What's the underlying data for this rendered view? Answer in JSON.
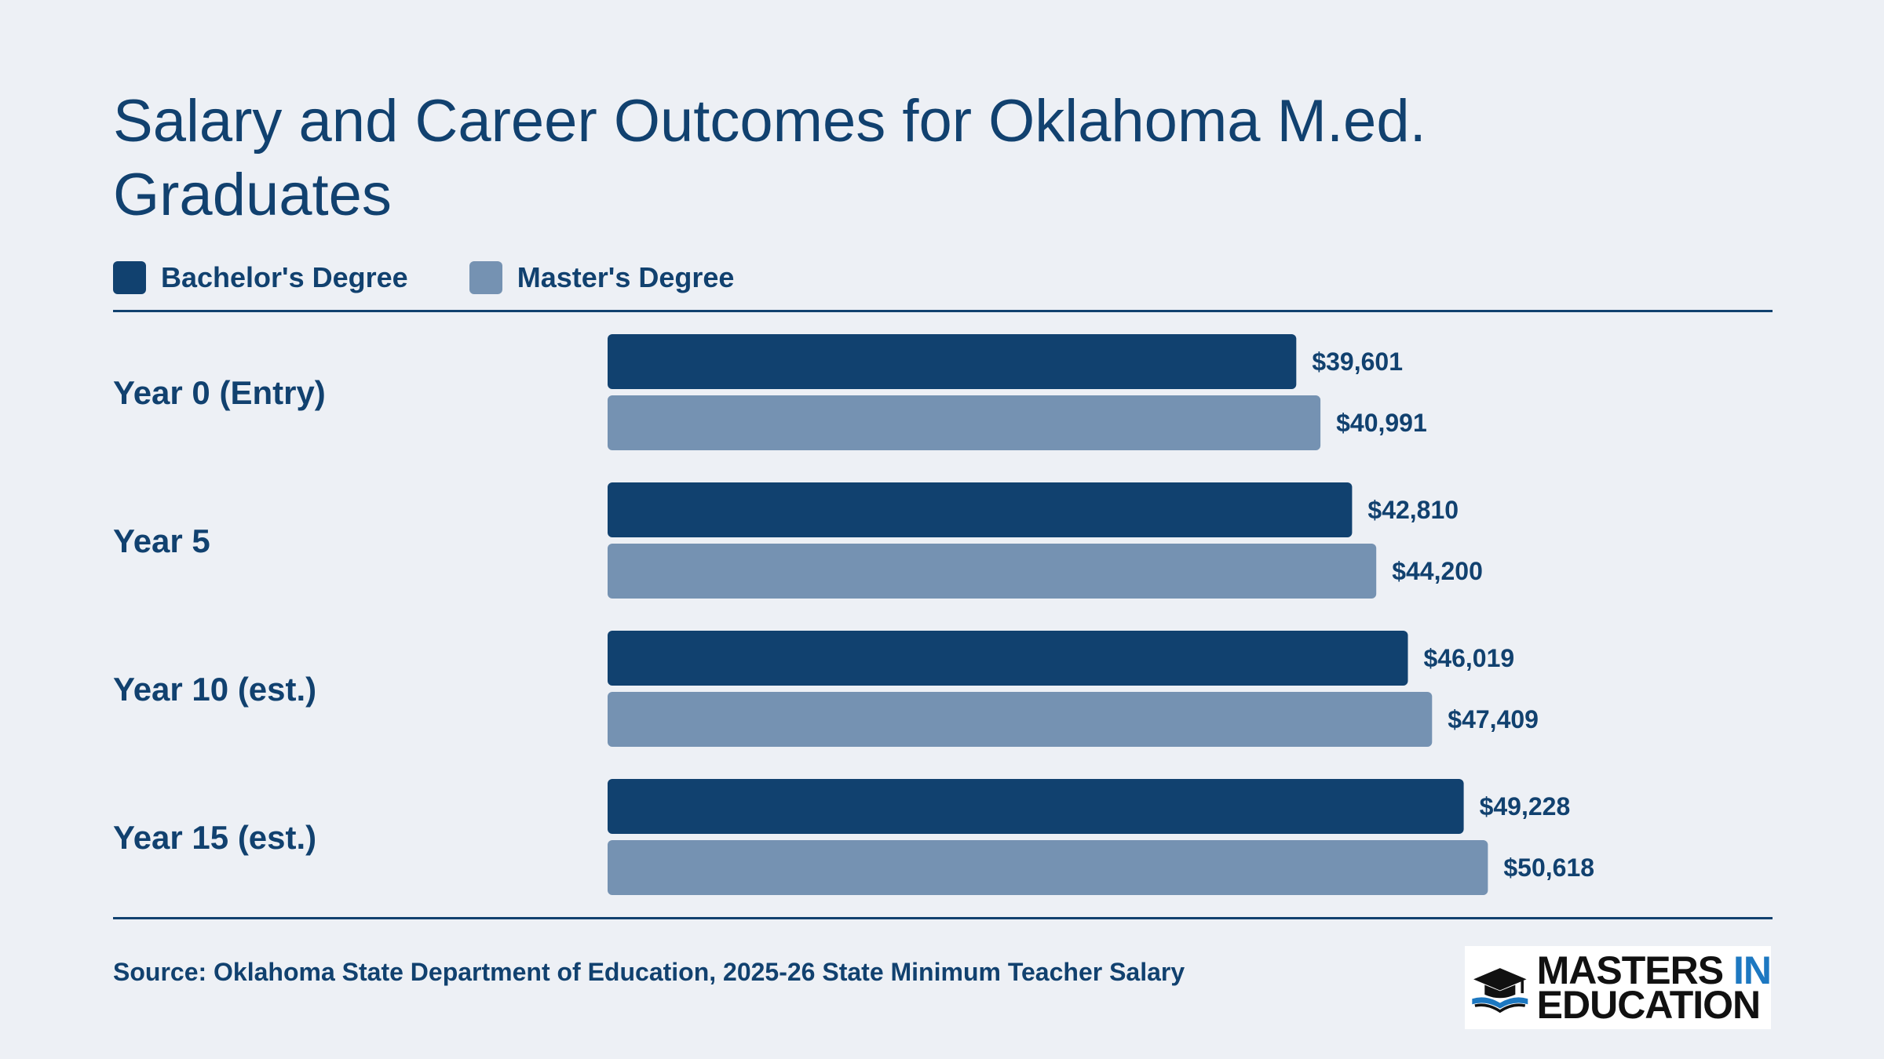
{
  "colors": {
    "bachelor": "#11416f",
    "master": "#7592b2",
    "text": "#11416f",
    "background": "#edf0f5",
    "logo_accent": "#1d78c1"
  },
  "chart_data": {
    "type": "bar",
    "orientation": "horizontal",
    "title": "Salary and Career Outcomes for Oklahoma M.ed. Graduates",
    "categories": [
      "Year 0 (Entry)",
      "Year 5",
      "Year 10 (est.)",
      "Year 15 (est.)"
    ],
    "series": [
      {
        "name": "Bachelor's Degree",
        "values": [
          39601,
          42810,
          46019,
          49228
        ],
        "labels": [
          "$39,601",
          "$42,810",
          "$46,019",
          "$49,228"
        ]
      },
      {
        "name": "Master's Degree",
        "values": [
          40991,
          44200,
          47409,
          50618
        ],
        "labels": [
          "$40,991",
          "$44,200",
          "$47,409",
          "$50,618"
        ]
      }
    ],
    "xlim": [
      0,
      65000
    ],
    "grid": false,
    "legend": "top-left"
  },
  "source": "Source: Oklahoma State Department of Education, 2025-26 State Minimum Teacher Salary",
  "logo": {
    "line1": "MASTERS",
    "line1_accent": "IN",
    "line2": "EDUCATION",
    "icon": "graduation-cap-book-icon"
  }
}
